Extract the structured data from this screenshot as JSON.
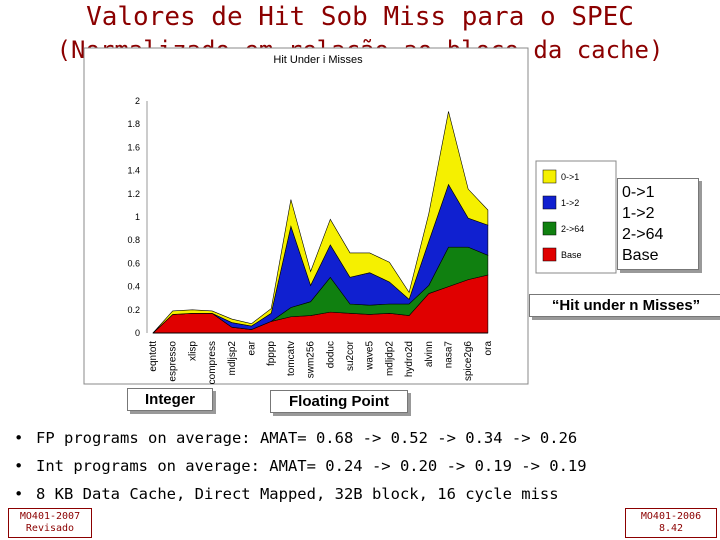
{
  "title_line1": "Valores de Hit Sob Miss para o SPEC",
  "title_line2": "(Normalizado em relação ao bloco da cache)",
  "chart_data": {
    "type": "area",
    "title": "Hit Under i Misses",
    "ylim": [
      0,
      2
    ],
    "yticks": [
      "0",
      "0.2",
      "0.4",
      "0.6",
      "0.8",
      "1",
      "1.2",
      "1.4",
      "1.6",
      "1.8",
      "2"
    ],
    "categories": [
      "eqntott",
      "espresso",
      "xlisp",
      "compress",
      "mdljsp2",
      "ear",
      "fpppp",
      "tomcatv",
      "swm256",
      "doduc",
      "su2cor",
      "wave5",
      "mdljdp2",
      "hydro2d",
      "alvinn",
      "nasa7",
      "spice2g6",
      "ora"
    ],
    "series": [
      {
        "name": "Base",
        "color": "#e00000",
        "values": [
          0,
          0.16,
          0.17,
          0.17,
          0.05,
          0.03,
          0.1,
          0.14,
          0.15,
          0.18,
          0.17,
          0.16,
          0.17,
          0.15,
          0.34,
          0.4,
          0.46,
          0.5
        ]
      },
      {
        "name": "2->64",
        "color": "#108010",
        "values": [
          0,
          0,
          0,
          0,
          0,
          0,
          0,
          0.08,
          0.12,
          0.3,
          0.08,
          0.08,
          0.08,
          0.1,
          0.07,
          0.34,
          0.28,
          0.17
        ]
      },
      {
        "name": "1->2",
        "color": "#1020d0",
        "values": [
          0,
          0,
          0,
          0,
          0.04,
          0.03,
          0.07,
          0.7,
          0.14,
          0.28,
          0.23,
          0.28,
          0.19,
          0.04,
          0.38,
          0.54,
          0.25,
          0.26
        ]
      },
      {
        "name": "0->1",
        "color": "#f5f000",
        "values": [
          0,
          0.03,
          0.03,
          0.02,
          0.03,
          0.02,
          0.04,
          0.23,
          0.12,
          0.22,
          0.21,
          0.17,
          0.17,
          0.06,
          0.24,
          0.63,
          0.25,
          0.13
        ]
      }
    ],
    "inner_legend": [
      "0->1",
      "1->2",
      "2->64",
      "Base"
    ]
  },
  "legend_labels": [
    "0->1",
    "1->2",
    "2->64",
    "Base"
  ],
  "callouts": {
    "hit_under": "“Hit under n Misses”",
    "integer": "Integer",
    "floating_point": "Floating Point"
  },
  "bullets": [
    "FP programs on average: AMAT= 0.68 -> 0.52 -> 0.34 -> 0.26",
    "Int programs on average: AMAT= 0.24 -> 0.20 -> 0.19 -> 0.19",
    "8 KB Data Cache, Direct Mapped, 32B block, 16 cycle miss"
  ],
  "footer_left": [
    "MO401-2007",
    "Revisado"
  ],
  "footer_right": [
    "MO401-2006",
    "8.42"
  ]
}
